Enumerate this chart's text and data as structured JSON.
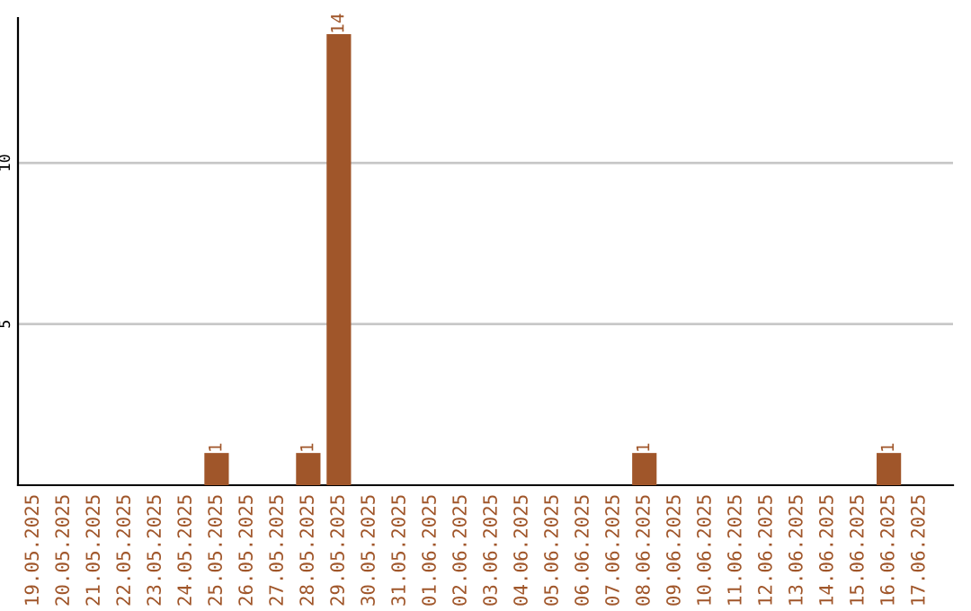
{
  "chart_data": {
    "type": "bar",
    "categories": [
      "19.05.2025",
      "20.05.2025",
      "21.05.2025",
      "22.05.2025",
      "23.05.2025",
      "24.05.2025",
      "25.05.2025",
      "26.05.2025",
      "27.05.2025",
      "28.05.2025",
      "29.05.2025",
      "30.05.2025",
      "31.05.2025",
      "01.06.2025",
      "02.06.2025",
      "03.06.2025",
      "04.06.2025",
      "05.06.2025",
      "06.06.2025",
      "07.06.2025",
      "08.06.2025",
      "09.06.2025",
      "10.06.2025",
      "11.06.2025",
      "12.06.2025",
      "13.06.2025",
      "14.06.2025",
      "15.06.2025",
      "16.06.2025",
      "17.06.2025"
    ],
    "values": [
      0,
      0,
      0,
      0,
      0,
      0,
      1,
      0,
      0,
      1,
      14,
      0,
      0,
      0,
      0,
      0,
      0,
      0,
      0,
      0,
      1,
      0,
      0,
      0,
      0,
      0,
      0,
      0,
      1,
      0
    ],
    "value_labels": [
      null,
      null,
      null,
      null,
      null,
      null,
      "1",
      null,
      null,
      "1",
      "14",
      null,
      null,
      null,
      null,
      null,
      null,
      null,
      null,
      null,
      "1",
      null,
      null,
      null,
      null,
      null,
      null,
      null,
      "1",
      null
    ],
    "color": "#a0562a",
    "ylim": [
      0,
      14.5
    ],
    "yticks": [
      5,
      10
    ],
    "grid": "y"
  }
}
